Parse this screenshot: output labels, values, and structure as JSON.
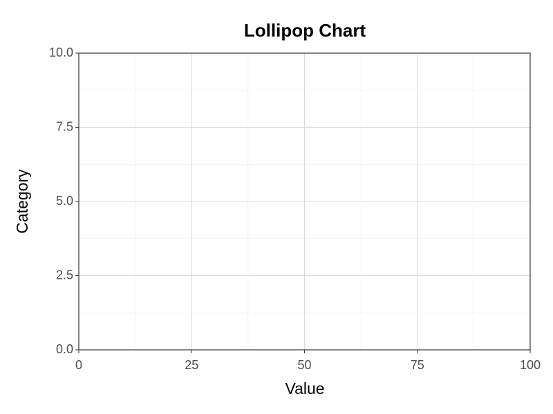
{
  "chart_data": {
    "type": "lollipop",
    "title": "Lollipop Chart",
    "x_label": "Value",
    "y_label": "Category",
    "xlim": [
      0,
      100
    ],
    "xticks": [
      0,
      25,
      50,
      75,
      100
    ],
    "ylim": [
      0,
      10
    ],
    "yticks": [
      {
        "value": 0,
        "label": "0.0"
      },
      2.5,
      {
        "value": 5,
        "label": "5.0"
      },
      7.5,
      {
        "value": 10,
        "label": "10.0"
      }
    ],
    "grid": true
  }
}
